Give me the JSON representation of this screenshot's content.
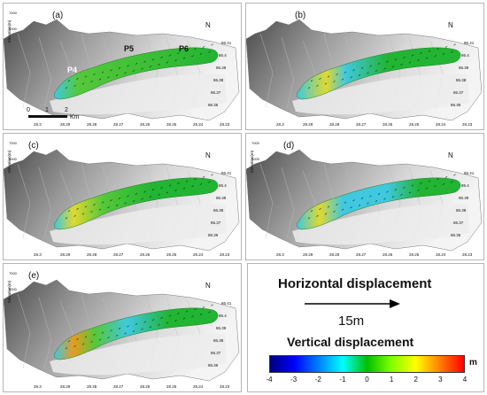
{
  "panels": [
    {
      "id": "a",
      "label": "(a)"
    },
    {
      "id": "b",
      "label": "(b)"
    },
    {
      "id": "c",
      "label": "(c)"
    },
    {
      "id": "d",
      "label": "(d)"
    },
    {
      "id": "e",
      "label": "(e)"
    }
  ],
  "axes": {
    "elevation_label": "Elevation(m)",
    "y_ticks": [
      "7000",
      "6000"
    ],
    "x_ticks": [
      "28.3",
      "28.29",
      "28.28",
      "28.27",
      "28.26",
      "28.25",
      "28.24",
      "28.23"
    ],
    "right_ticks": [
      "86.41",
      "86.4",
      "86.39",
      "86.38",
      "86.37",
      "86.36"
    ]
  },
  "points": {
    "p4": "P4",
    "p5": "P5",
    "p6": "P6"
  },
  "scale_bar": {
    "ticks": [
      "0",
      "1",
      "2"
    ],
    "unit": "Km"
  },
  "north_glyph": "N",
  "legend": {
    "horizontal_title": "Horizontal displacement",
    "arrow_label": "15m",
    "vertical_title": "Vertical displacement",
    "colorbar_ticks": [
      "-4",
      "-3",
      "-2",
      "-1",
      "0",
      "1",
      "2",
      "3",
      "4"
    ],
    "colorbar_unit": "m",
    "colorbar_colors": [
      "#00007f",
      "#0000ff",
      "#0080ff",
      "#00ffff",
      "#00c000",
      "#80ff00",
      "#ffff00",
      "#ff8000",
      "#ff0000"
    ]
  },
  "glacier_colors": {
    "green": "#22b433",
    "light_green": "#55c83a",
    "cyan": "#40c8e0",
    "yellow": "#e0d830",
    "orange": "#e89a20"
  }
}
